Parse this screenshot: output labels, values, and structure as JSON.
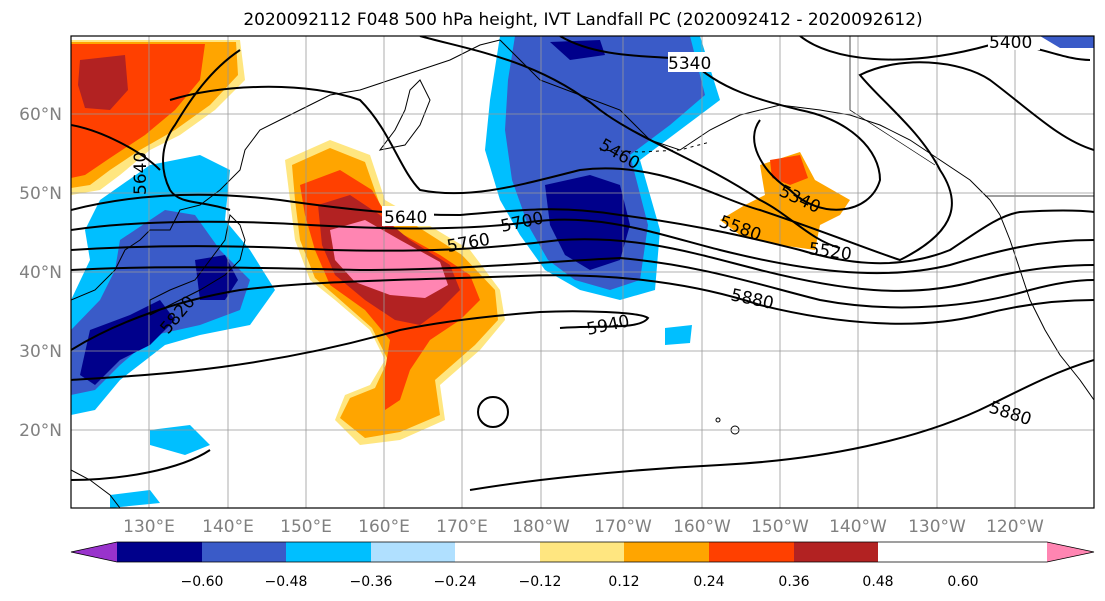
{
  "title": "2020092112 F048 500 hPa height, IVT Landfall PC (2020092412 - 2020092612)",
  "axes": {
    "lat_ticks": [
      "20°N",
      "30°N",
      "40°N",
      "50°N",
      "60°N"
    ],
    "lon_ticks": [
      "130°E",
      "140°E",
      "150°E",
      "160°E",
      "170°E",
      "180°W",
      "170°W",
      "160°W",
      "150°W",
      "140°W",
      "130°W",
      "120°W"
    ],
    "lat_range": [
      10,
      70
    ],
    "lon_range_east": [
      120,
      251
    ],
    "gridlines": true
  },
  "colorbar": {
    "extend": "both",
    "tick_labels": [
      "−0.60",
      "−0.48",
      "−0.36",
      "−0.24",
      "−0.12",
      "0.12",
      "0.24",
      "0.36",
      "0.48",
      "0.60"
    ],
    "colors": [
      "#9933cc",
      "#00008b",
      "#3a5bc8",
      "#00bfff",
      "#b0e0ff",
      "#ffffff",
      "#ffe680",
      "#ffa500",
      "#ff4000",
      "#b22222",
      "#ff85b2"
    ]
  },
  "contours": {
    "variable": "500 hPa height",
    "labels": [
      "5400",
      "5340",
      "5460",
      "5640",
      "5640",
      "5700",
      "5760",
      "5820",
      "5340",
      "5580",
      "5520",
      "5880",
      "5940",
      "5880"
    ]
  },
  "colors": {
    "coastline": "#000000",
    "gridline": "#999999",
    "contour": "#000000"
  }
}
